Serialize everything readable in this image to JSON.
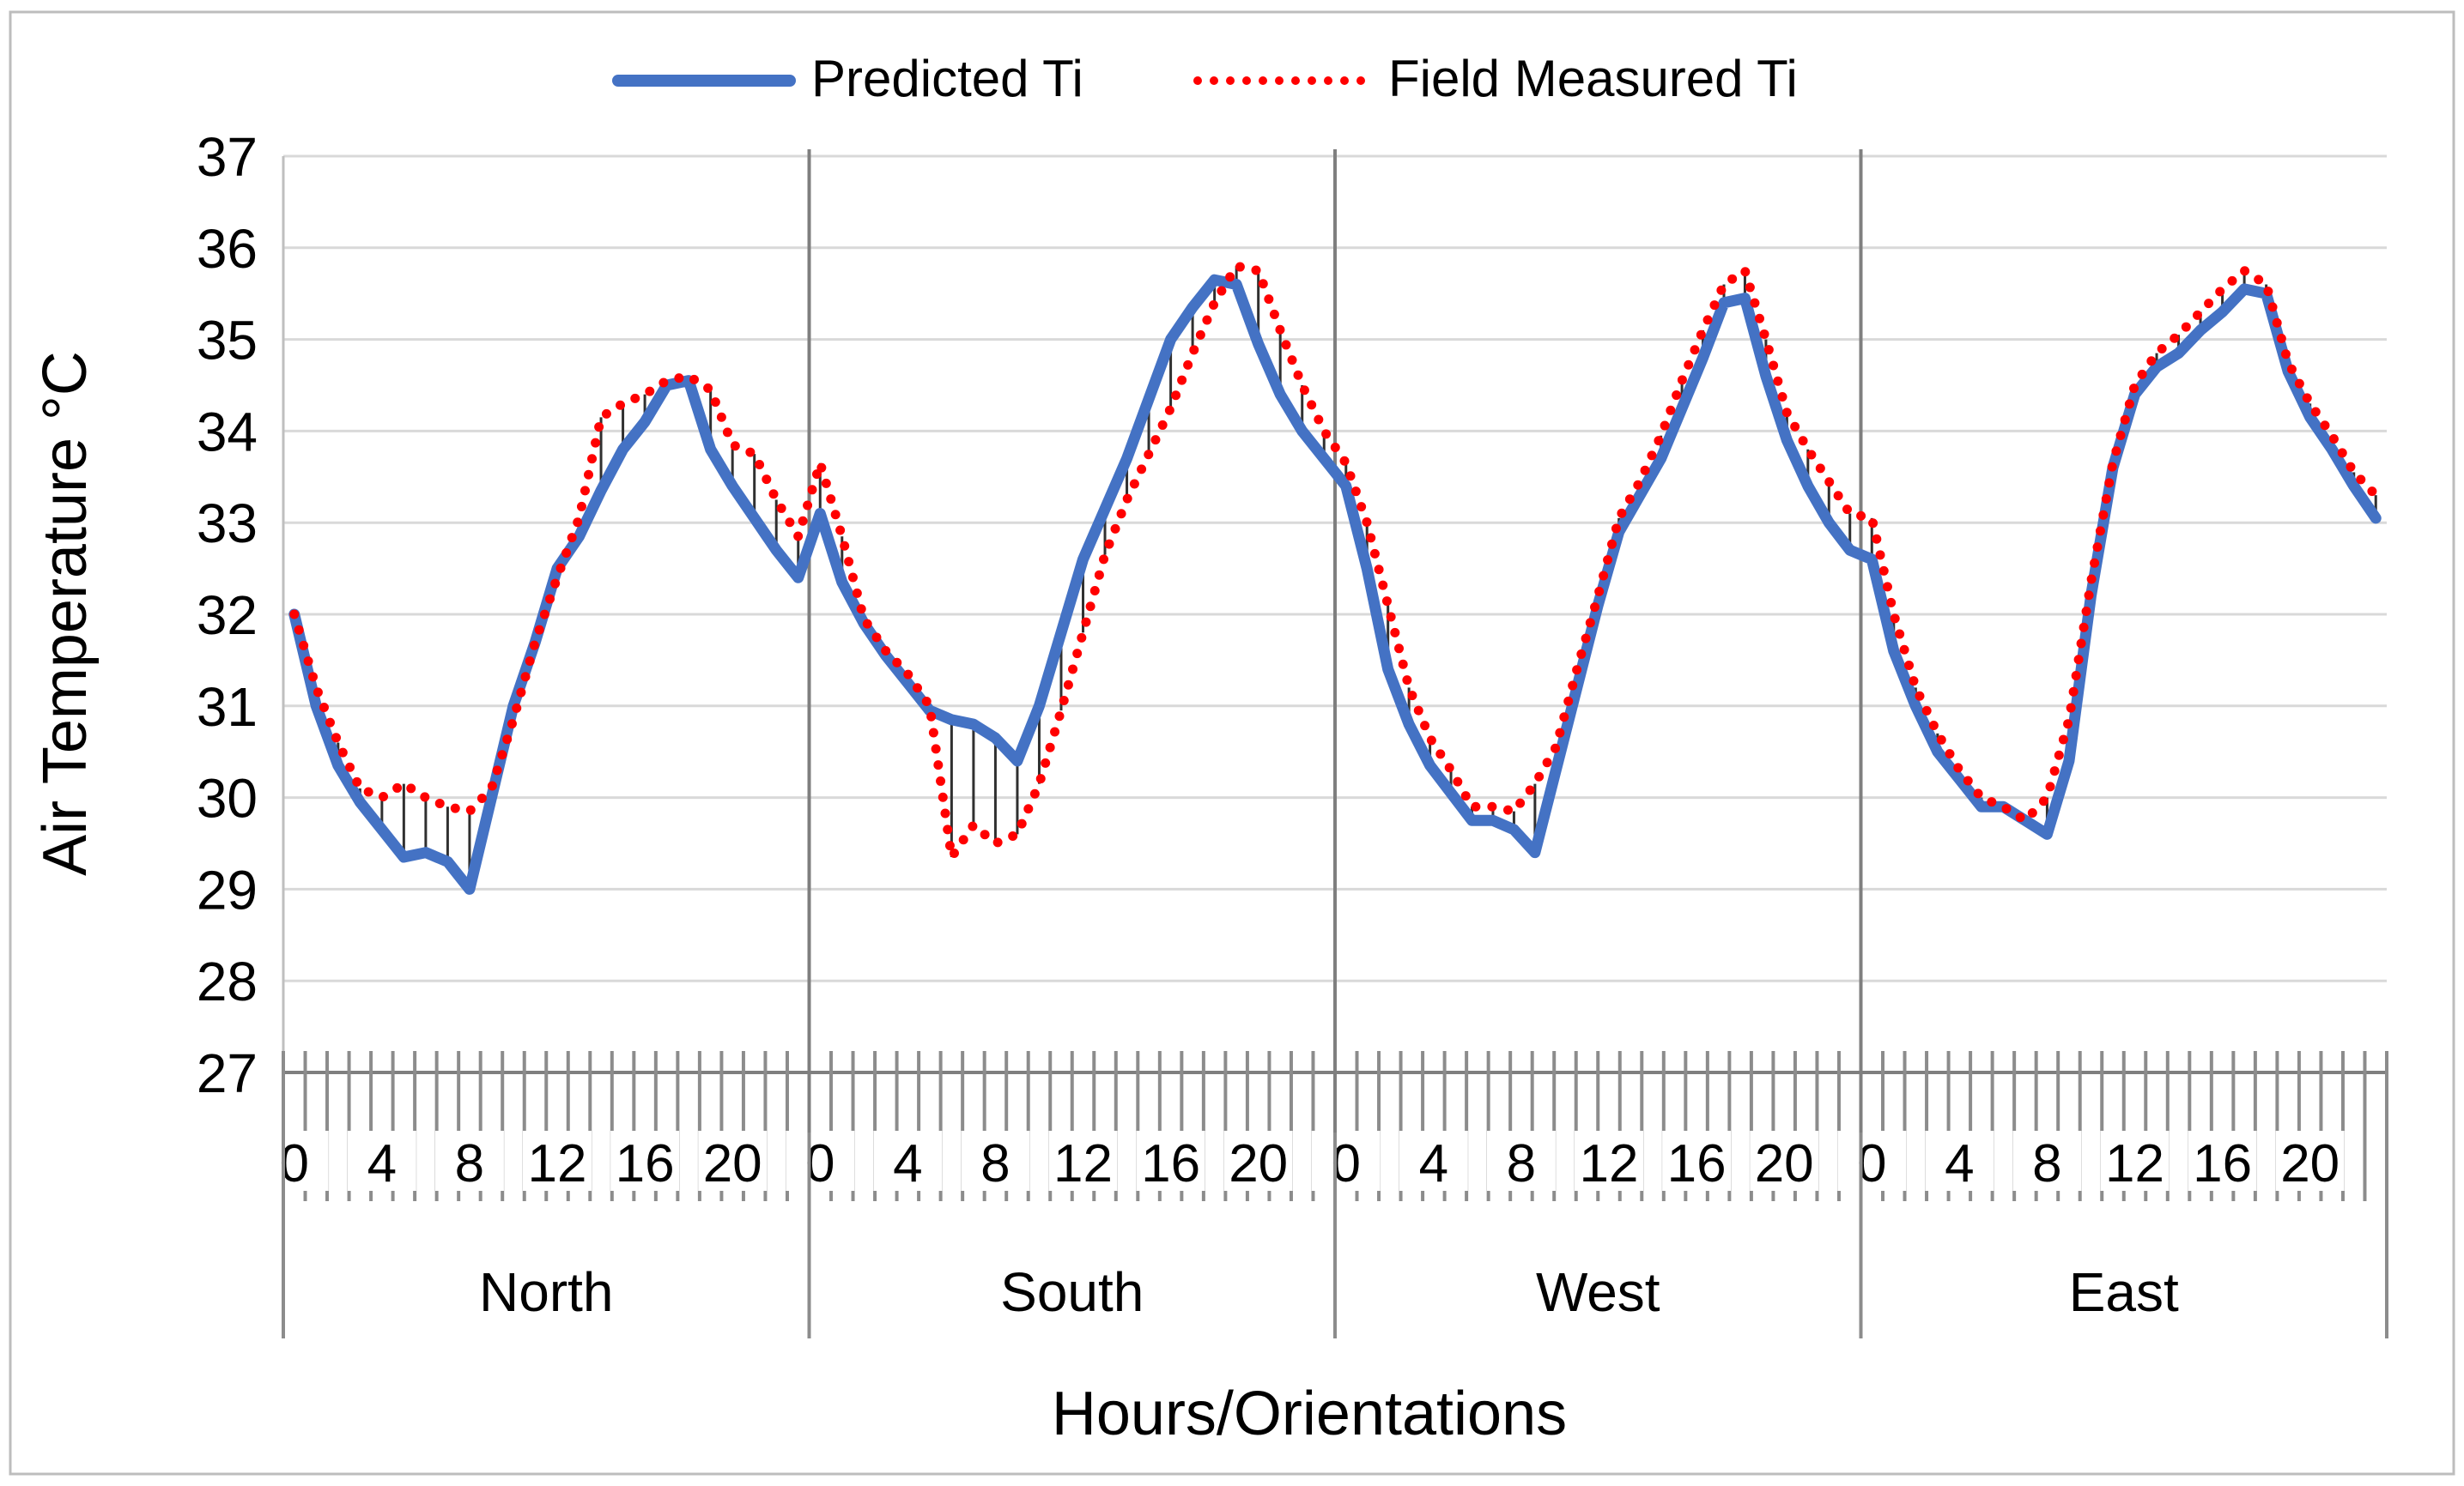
{
  "chart_data": {
    "type": "line",
    "title": "",
    "xlabel": "Hours/Orientations",
    "ylabel": "Air Temperature °C",
    "ylim": [
      27,
      37
    ],
    "yticks": [
      27,
      28,
      29,
      30,
      31,
      32,
      33,
      34,
      35,
      36,
      37
    ],
    "grid": true,
    "legend_position": "top-center",
    "hour_tick_labels": [
      "0",
      "4",
      "8",
      "12",
      "16",
      "20"
    ],
    "hour_tick_positions": [
      0,
      4,
      8,
      12,
      16,
      20
    ],
    "hours_per_group": 24,
    "groups": [
      "North",
      "South",
      "West",
      "East"
    ],
    "series": [
      {
        "name": "Predicted Ti",
        "color": "#4472C4",
        "style": "solid",
        "values": [
          32.0,
          31.0,
          30.35,
          29.95,
          29.65,
          29.35,
          29.4,
          29.3,
          29.0,
          30.0,
          31.0,
          31.7,
          32.5,
          32.85,
          33.35,
          33.8,
          34.1,
          34.5,
          34.55,
          33.8,
          33.4,
          33.05,
          32.7,
          32.4,
          33.1,
          32.35,
          31.9,
          31.55,
          31.25,
          30.95,
          30.85,
          30.8,
          30.65,
          30.4,
          31.0,
          31.8,
          32.6,
          33.15,
          33.7,
          34.35,
          35.0,
          35.35,
          35.65,
          35.6,
          34.95,
          34.4,
          34.0,
          33.7,
          33.4,
          32.5,
          31.4,
          30.8,
          30.35,
          30.05,
          29.75,
          29.75,
          29.65,
          29.4,
          30.3,
          31.2,
          32.1,
          32.9,
          33.3,
          33.7,
          34.25,
          34.8,
          35.4,
          35.45,
          34.6,
          33.9,
          33.4,
          33.0,
          32.7,
          32.6,
          31.6,
          31.0,
          30.5,
          30.2,
          29.9,
          29.9,
          29.75,
          29.6,
          30.4,
          32.2,
          33.6,
          34.4,
          34.7,
          34.85,
          35.1,
          35.3,
          35.55,
          35.5,
          34.65,
          34.15,
          33.8,
          33.4,
          33.05
        ]
      },
      {
        "name": "Field Measured Ti",
        "color": "#FF0000",
        "style": "dotted",
        "values": [
          32.0,
          31.2,
          30.6,
          30.1,
          30.0,
          30.15,
          30.0,
          29.9,
          29.85,
          30.1,
          30.85,
          31.7,
          32.4,
          33.05,
          34.15,
          34.3,
          34.4,
          34.55,
          34.6,
          34.45,
          33.85,
          33.75,
          33.25,
          32.85,
          33.65,
          32.85,
          31.95,
          31.6,
          31.35,
          31.0,
          29.35,
          29.7,
          29.5,
          29.6,
          30.15,
          30.95,
          31.8,
          32.65,
          33.25,
          33.75,
          34.25,
          34.85,
          35.4,
          35.8,
          35.75,
          35.1,
          34.5,
          34.0,
          33.65,
          33.0,
          32.1,
          31.2,
          30.65,
          30.3,
          29.9,
          29.9,
          29.85,
          30.15,
          30.55,
          31.4,
          32.2,
          33.05,
          33.45,
          33.95,
          34.55,
          35.1,
          35.6,
          35.75,
          35.0,
          34.2,
          33.8,
          33.45,
          33.1,
          33.05,
          32.0,
          31.2,
          30.7,
          30.3,
          30.0,
          29.9,
          29.75,
          30.0,
          30.85,
          32.35,
          33.65,
          34.5,
          34.85,
          35.05,
          35.3,
          35.55,
          35.75,
          35.6,
          34.75,
          34.3,
          33.95,
          33.55,
          33.3
        ]
      }
    ]
  }
}
